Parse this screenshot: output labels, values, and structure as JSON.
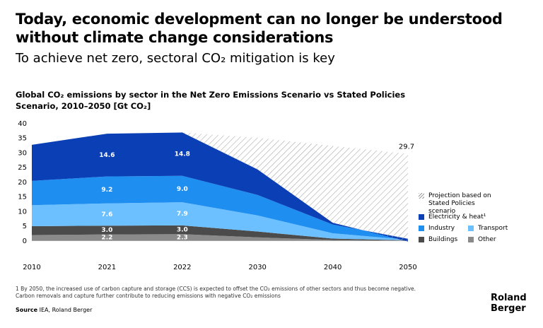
{
  "header": {
    "title": "Today, economic development can no longer be understood without climate change considerations",
    "subtitle": "To achieve net zero, sectoral CO₂ mitigation is key"
  },
  "chart_data": {
    "type": "stacked-area",
    "title": "Global CO₂ emissions by sector in the Net Zero Emissions Scenario vs Stated Policies Scenario, 2010–2050 [Gt CO₂]",
    "categories": [
      "2010",
      "2021",
      "2022",
      "2030",
      "2040",
      "2050"
    ],
    "ylim": [
      -1.5,
      40
    ],
    "yticks": [
      0,
      5,
      10,
      15,
      20,
      25,
      30,
      35,
      40
    ],
    "grid": false,
    "series": [
      {
        "name": "Other",
        "color": "#8a8a8a",
        "values": [
          2.0,
          2.2,
          2.3,
          1.2,
          0.3,
          0.1
        ],
        "value_labels": [
          null,
          "2.2",
          "2.3",
          null,
          null,
          null
        ]
      },
      {
        "name": "Buildings",
        "color": "#4b4b4b",
        "values": [
          3.0,
          3.0,
          3.0,
          2.0,
          0.5,
          0.1
        ],
        "value_labels": [
          null,
          "3.0",
          "3.0",
          null,
          null,
          null
        ]
      },
      {
        "name": "Transport",
        "color": "#6cc0ff",
        "values": [
          7.2,
          7.6,
          7.9,
          5.5,
          1.8,
          0.2
        ],
        "value_labels": [
          null,
          "7.6",
          "7.9",
          null,
          null,
          null
        ]
      },
      {
        "name": "Industry",
        "color": "#1e8ef0",
        "values": [
          8.3,
          9.2,
          9.0,
          7.0,
          3.0,
          0.3
        ],
        "value_labels": [
          null,
          "9.2",
          "9.0",
          null,
          null,
          null
        ]
      },
      {
        "name": "Electricity & heat¹",
        "color": "#0b3fb5",
        "values": [
          12.3,
          14.6,
          14.8,
          8.7,
          0.6,
          -0.9
        ],
        "value_labels": [
          null,
          "14.6",
          "14.8",
          null,
          null,
          null
        ]
      }
    ],
    "projection": {
      "name": "Projection based on Stated Policies scenario",
      "color": "#9a9a9a",
      "values": [
        null,
        null,
        37.0,
        35.2,
        32.4,
        29.7
      ],
      "value_labels": [
        null,
        null,
        null,
        null,
        null,
        "29.7"
      ]
    }
  },
  "footnote": [
    "1 By 2050, the increased use of carbon capture and storage (CCS) is expected to offset the CO₂ emissions of other sectors and thus become negative.",
    "Carbon removals and capture further contribute to reducing emissions with negative CO₂ emissions"
  ],
  "source": {
    "label": "Source",
    "text": "IEA, Roland Berger"
  },
  "logo": "Roland Berger"
}
